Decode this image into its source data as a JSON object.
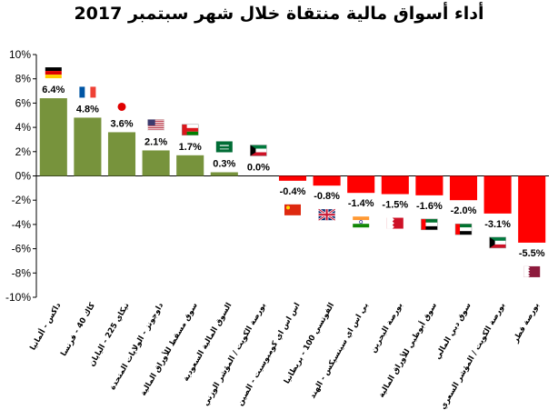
{
  "chart_data": {
    "type": "bar",
    "title": "أداء أسواق مالية منتقاة خلال شهر سبتمبر 2017",
    "xlabel": "",
    "ylabel": "",
    "ylim": [
      -10,
      10
    ],
    "yticks": [
      "10%",
      "8%",
      "6%",
      "4%",
      "2%",
      "0%",
      "-2%",
      "-4%",
      "-6%",
      "-8%",
      "-10%"
    ],
    "grid": false,
    "legend": "none",
    "categories": [
      "داكس - ألمانيا",
      "كاك 40 - فرنسا",
      "نيكاي 225 - اليابان",
      "داوجونز - الولايات المتحدة",
      "سوق مسقط للأوراق المالية",
      "السوق المالية السعودية",
      "بورصة الكويت / المؤشر الوزني",
      "اس اس اي كومبوسيت - الصين",
      "الفوتسي 100 - بريطانيا",
      "بي اس اي سينسيكس - الهند",
      "بورصة البحرين",
      "سوق أبوظبي للأوراق المالية",
      "سوق دبي المالي",
      "بورصة الكويت / المؤشر السعري",
      "بورصة قطر"
    ],
    "values": [
      6.4,
      4.8,
      3.6,
      2.1,
      1.7,
      0.3,
      0.0,
      -0.4,
      -0.8,
      -1.4,
      -1.5,
      -1.6,
      -2.0,
      -3.1,
      -5.5
    ],
    "data_labels": [
      "6.4%",
      "4.8%",
      "3.6%",
      "2.1%",
      "1.7%",
      "0.3%",
      "0.0%",
      "-0.4%",
      "-0.8%",
      "-1.4%",
      "-1.5%",
      "-1.6%",
      "-2.0%",
      "-3.1%",
      "-5.5%"
    ],
    "flags": [
      "germany-flag",
      "france-flag",
      "japan-flag",
      "usa-flag",
      "oman-flag",
      "saudi-flag",
      "kuwait-flag",
      "china-flag",
      "uk-flag",
      "india-flag",
      "bahrain-flag",
      "uae-flag",
      "uae-flag",
      "kuwait-flag",
      "qatar-flag"
    ],
    "colors": {
      "positive": "#77933c",
      "negative": "#ff0000",
      "axis": "#000000"
    }
  }
}
